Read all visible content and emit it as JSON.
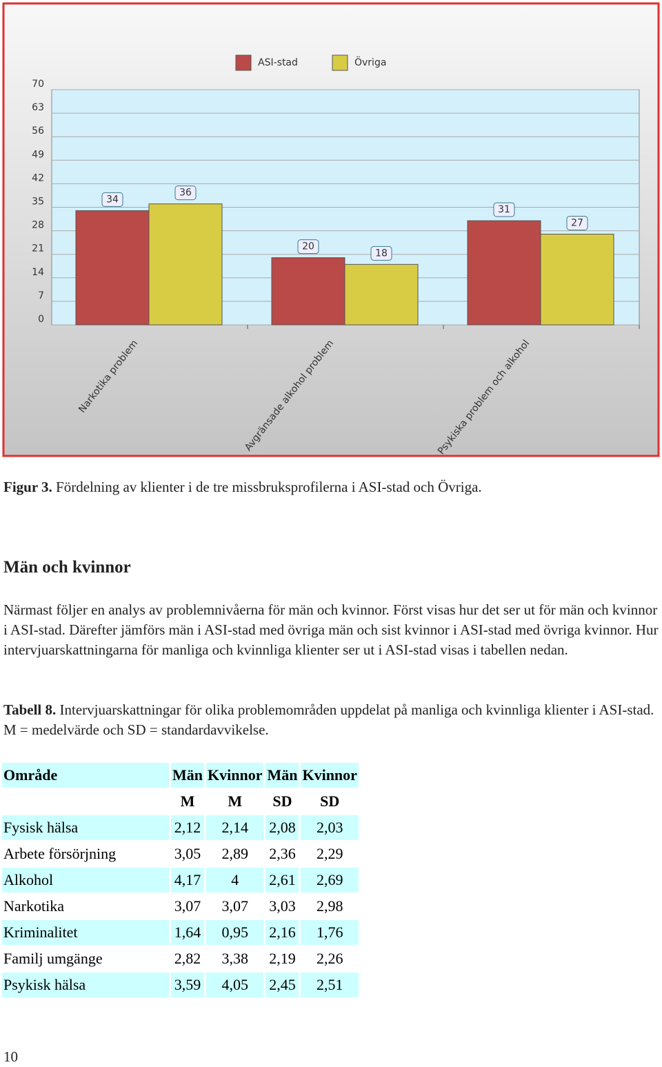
{
  "chart_data": {
    "type": "bar",
    "categories": [
      "Narkotika problem",
      "Avgränsade alkohol problem",
      "Psykiska problem och alkohol"
    ],
    "series": [
      {
        "name": "ASI-stad",
        "color": "#b94a48",
        "values": [
          34,
          20,
          31
        ]
      },
      {
        "name": "Övriga",
        "color": "#d9cc45",
        "values": [
          36,
          18,
          27
        ]
      }
    ],
    "ylim": [
      0,
      70
    ],
    "yticks": [
      0,
      7,
      14,
      21,
      28,
      35,
      42,
      49,
      56,
      63,
      70
    ],
    "grid": true,
    "legend": "top"
  },
  "caption": {
    "label": "Figur 3.",
    "text": "Fördelning av klienter i de tre missbruksprofilerna i ASI-stad och Övriga."
  },
  "section": {
    "heading": "Män och kvinnor",
    "paragraph": "Närmast följer en analys av problemnivåerna för män och kvinnor. Först visas hur det ser ut för män och kvinnor i ASI-stad. Därefter jämförs män i ASI-stad med övriga män och sist kvinnor i ASI-stad med övriga kvinnor. Hur intervjuarskattningarna för manliga och kvinnliga klienter ser ut i ASI-stad visas i tabellen nedan."
  },
  "table_caption": {
    "label": "Tabell 8.",
    "text": "Intervjuarskattningar för olika problemområden uppdelat på manliga och kvinnliga klienter i ASI-stad. M = medelvärde och SD = standardavvikelse."
  },
  "table": {
    "header": [
      "Område",
      "Män",
      "Kvinnor",
      "Män",
      "Kvinnor"
    ],
    "subheader": [
      null,
      "M",
      "M",
      "SD",
      "SD"
    ],
    "rows": [
      [
        "Fysisk hälsa",
        "2,12",
        "2,14",
        "2,08",
        "2,03"
      ],
      [
        "Arbete försörjning",
        "3,05",
        "2,89",
        "2,36",
        "2,29"
      ],
      [
        "Alkohol",
        "4,17",
        "4",
        "2,61",
        "2,69"
      ],
      [
        "Narkotika",
        "3,07",
        "3,07",
        "3,03",
        "2,98"
      ],
      [
        "Kriminalitet",
        "1,64",
        "0,95",
        "2,16",
        "1,76"
      ],
      [
        "Familj umgänge",
        "2,82",
        "3,38",
        "2,19",
        "2,26"
      ],
      [
        "Psykisk hälsa",
        "3,59",
        "4,05",
        "2,45",
        "2,51"
      ]
    ]
  },
  "page_number": "10"
}
